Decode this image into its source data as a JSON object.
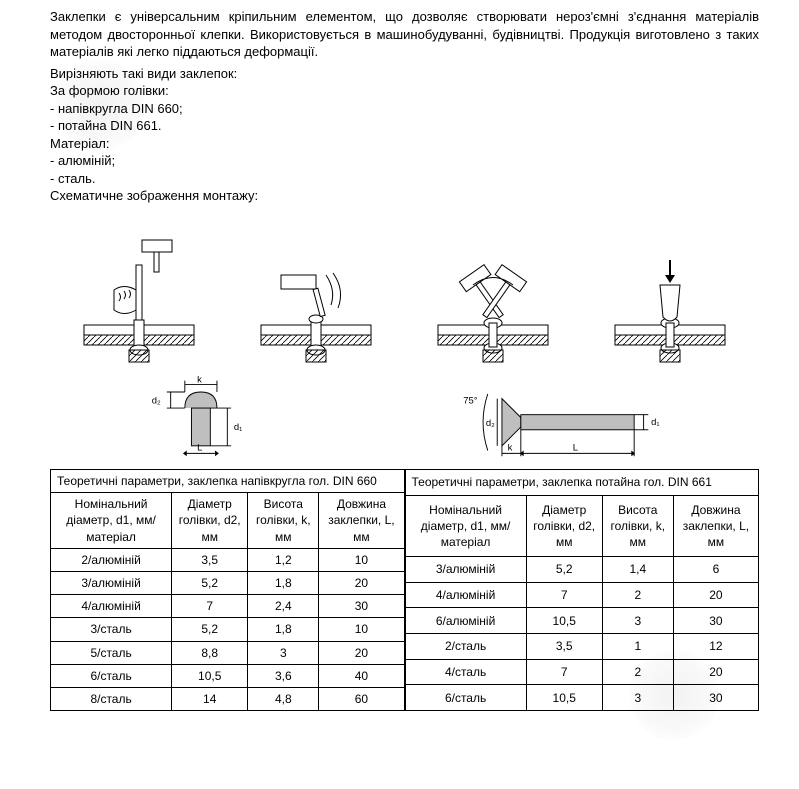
{
  "intro": "Заклепки є універсальним кріпильним елементом, що дозволяє створювати нероз'ємні з'єднання матеріалів методом двосторонньої клепки. Використовується в машинобудуванні, будівництві. Продукція виготовлено з таких матеріалів які легко піддаються деформації.",
  "types_heading": "Вирізняють такі види заклепок:",
  "form_heading": "За формою голівки:",
  "form_items": [
    "- напівкругла DIN 660;",
    "- потайна DIN 661."
  ],
  "material_heading": "Матеріал:",
  "material_items": [
    "- алюміній;",
    "- сталь."
  ],
  "schematic_heading": "Схематичне зображення монтажу:",
  "schematic_labels": {
    "k": "k",
    "d1": "d₁",
    "d2": "d₂",
    "L": "L",
    "angle": "75°"
  },
  "table660": {
    "title": "Теоретичні параметри, заклепка напівкругла гол. DIN 660",
    "columns": [
      "Номінальний діаметр, d1, мм/ матеріал",
      "Діаметр голівки, d2, мм",
      "Висота голівки, k, мм",
      "Довжина заклепки, L, мм"
    ],
    "rows": [
      [
        "2/алюміній",
        "3,5",
        "1,2",
        "10"
      ],
      [
        "3/алюміній",
        "5,2",
        "1,8",
        "20"
      ],
      [
        "4/алюміній",
        "7",
        "2,4",
        "30"
      ],
      [
        "3/сталь",
        "5,2",
        "1,8",
        "10"
      ],
      [
        "5/сталь",
        "8,8",
        "3",
        "20"
      ],
      [
        "6/сталь",
        "10,5",
        "3,6",
        "40"
      ],
      [
        "8/сталь",
        "14",
        "4,8",
        "60"
      ]
    ]
  },
  "table661": {
    "title": "Теоретичні параметри, заклепка потайна гол. DIN 661",
    "columns": [
      "Номінальний діаметр, d1, мм/ матеріал",
      "Діаметр голівки, d2, мм",
      "Висота голівки, k, мм",
      "Довжина заклепки, L, мм"
    ],
    "rows": [
      [
        "3/алюміній",
        "5,2",
        "1,4",
        "6"
      ],
      [
        "4/алюміній",
        "7",
        "2",
        "20"
      ],
      [
        "6/алюміній",
        "10,5",
        "3",
        "30"
      ],
      [
        "2/сталь",
        "3,5",
        "1",
        "12"
      ],
      [
        "4/сталь",
        "7",
        "2",
        "20"
      ],
      [
        "6/сталь",
        "10,5",
        "3",
        "30"
      ]
    ]
  },
  "styling": {
    "body_font": "Arial",
    "body_size_pt": 10,
    "text_color": "#000000",
    "background": "#ffffff",
    "table_border": "#000000",
    "diagram_stroke": "#000000",
    "rivet_fill": "#bfbfbf",
    "hatch_stroke": "#000000"
  }
}
